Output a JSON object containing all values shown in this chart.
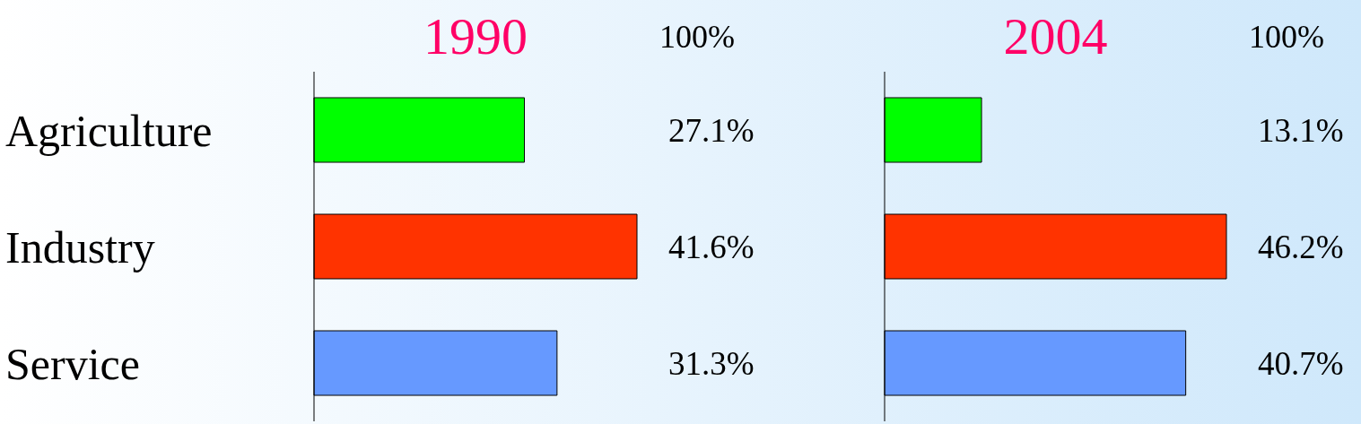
{
  "chart_data": [
    {
      "type": "bar",
      "orientation": "horizontal",
      "title": "1990",
      "annotations": [
        "100%"
      ],
      "categories": [
        "Agriculture",
        "Industry",
        "Service"
      ],
      "values": [
        27.1,
        41.6,
        31.3
      ],
      "value_labels": [
        "27.1%",
        "41.6%",
        "31.3%"
      ],
      "colors": [
        "#00ff00",
        "#ff3300",
        "#6699ff"
      ],
      "tick_labels": "y"
    },
    {
      "type": "bar",
      "orientation": "horizontal",
      "title": "2004",
      "annotations": [
        "100%"
      ],
      "categories": [
        null,
        null,
        null
      ],
      "values": [
        13.1,
        46.2,
        40.7
      ],
      "value_labels": [
        "13.1%",
        "46.2%",
        "40.7%"
      ],
      "colors": [
        "#00ff00",
        "#ff3300",
        "#6699ff"
      ],
      "tick_labels": false
    }
  ]
}
